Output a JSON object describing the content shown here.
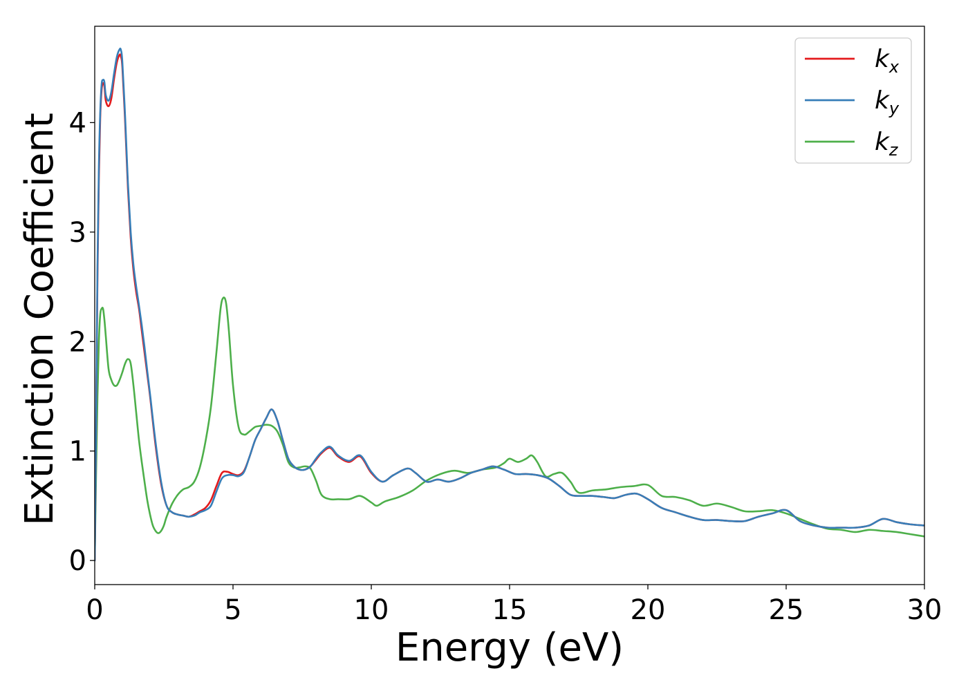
{
  "chart_data": {
    "type": "line",
    "title": "",
    "xlabel": "Energy (eV)",
    "ylabel": "Extinction Coefficient",
    "xlim": [
      0,
      30
    ],
    "ylim": [
      -0.22,
      4.88
    ],
    "xticks": [
      0,
      5,
      10,
      15,
      20,
      25,
      30
    ],
    "yticks": [
      0,
      1,
      2,
      3,
      4
    ],
    "grid": false,
    "legend_position": "top-right",
    "series": [
      {
        "name": "k_x",
        "legend_base": "k",
        "legend_sub": "x",
        "color": "#e41a1c",
        "x": [
          0,
          0.05,
          0.1,
          0.15,
          0.2,
          0.25,
          0.3,
          0.35,
          0.4,
          0.5,
          0.6,
          0.7,
          0.8,
          0.9,
          0.95,
          1.0,
          1.1,
          1.2,
          1.3,
          1.4,
          1.5,
          1.6,
          1.7,
          1.8,
          1.9,
          2.0,
          2.2,
          2.4,
          2.6,
          2.8,
          3.0,
          3.2,
          3.4,
          3.6,
          3.8,
          4.0,
          4.2,
          4.4,
          4.6,
          4.8,
          5.0,
          5.2,
          5.4,
          5.6,
          5.8,
          6.0,
          6.2,
          6.4,
          6.6,
          6.8,
          7.0,
          7.2,
          7.4,
          7.6,
          7.8,
          8.0,
          8.2,
          8.5,
          8.8,
          9.2,
          9.6,
          10.0,
          10.4,
          10.8,
          11.3,
          11.6,
          12.0,
          12.4,
          12.8,
          13.2,
          13.6,
          14.0,
          14.4,
          14.8,
          15.2,
          15.6,
          16.0,
          16.4,
          16.8,
          17.2,
          17.6,
          18.0,
          18.4,
          18.8,
          19.2,
          19.6,
          20.0,
          20.5,
          21.0,
          21.5,
          22.0,
          22.5,
          23.0,
          23.5,
          24.0,
          24.5,
          25.0,
          25.5,
          26.0,
          26.5,
          27.0,
          27.5,
          28.0,
          28.5,
          29.0,
          29.5,
          30.0
        ],
        "y": [
          0.0,
          1.2,
          2.6,
          3.5,
          4.05,
          4.3,
          4.36,
          4.33,
          4.2,
          4.15,
          4.22,
          4.4,
          4.55,
          4.62,
          4.6,
          4.5,
          4.0,
          3.4,
          2.95,
          2.65,
          2.45,
          2.3,
          2.1,
          1.9,
          1.7,
          1.5,
          1.05,
          0.7,
          0.5,
          0.44,
          0.42,
          0.41,
          0.4,
          0.42,
          0.45,
          0.48,
          0.55,
          0.68,
          0.8,
          0.81,
          0.79,
          0.78,
          0.82,
          0.95,
          1.1,
          1.2,
          1.3,
          1.38,
          1.28,
          1.1,
          0.93,
          0.86,
          0.83,
          0.83,
          0.86,
          0.92,
          0.98,
          1.03,
          0.95,
          0.9,
          0.95,
          0.8,
          0.72,
          0.78,
          0.84,
          0.8,
          0.72,
          0.74,
          0.72,
          0.75,
          0.8,
          0.83,
          0.86,
          0.83,
          0.79,
          0.79,
          0.78,
          0.75,
          0.68,
          0.6,
          0.59,
          0.59,
          0.58,
          0.57,
          0.6,
          0.61,
          0.56,
          0.48,
          0.44,
          0.4,
          0.37,
          0.37,
          0.36,
          0.36,
          0.4,
          0.43,
          0.46,
          0.36,
          0.32,
          0.3,
          0.3,
          0.3,
          0.32,
          0.38,
          0.35,
          0.33,
          0.32
        ]
      },
      {
        "name": "k_y",
        "legend_base": "k",
        "legend_sub": "y",
        "color": "#377eb8",
        "x": [
          0,
          0.05,
          0.1,
          0.15,
          0.2,
          0.25,
          0.3,
          0.35,
          0.4,
          0.5,
          0.6,
          0.7,
          0.8,
          0.9,
          0.95,
          1.0,
          1.1,
          1.2,
          1.3,
          1.4,
          1.5,
          1.6,
          1.7,
          1.8,
          1.9,
          2.0,
          2.2,
          2.4,
          2.6,
          2.8,
          3.0,
          3.2,
          3.4,
          3.6,
          3.8,
          4.0,
          4.2,
          4.4,
          4.6,
          4.8,
          5.0,
          5.2,
          5.4,
          5.6,
          5.8,
          6.0,
          6.2,
          6.4,
          6.6,
          6.8,
          7.0,
          7.2,
          7.4,
          7.6,
          7.8,
          8.0,
          8.2,
          8.5,
          8.8,
          9.2,
          9.6,
          10.0,
          10.4,
          10.8,
          11.3,
          11.6,
          12.0,
          12.4,
          12.8,
          13.2,
          13.6,
          14.0,
          14.4,
          14.8,
          15.2,
          15.6,
          16.0,
          16.4,
          16.8,
          17.2,
          17.6,
          18.0,
          18.4,
          18.8,
          19.2,
          19.6,
          20.0,
          20.5,
          21.0,
          21.5,
          22.0,
          22.5,
          23.0,
          23.5,
          24.0,
          24.5,
          25.0,
          25.5,
          26.0,
          26.5,
          27.0,
          27.5,
          28.0,
          28.5,
          29.0,
          29.5,
          30.0
        ],
        "y": [
          0.0,
          1.25,
          2.7,
          3.6,
          4.1,
          4.35,
          4.39,
          4.37,
          4.25,
          4.2,
          4.28,
          4.45,
          4.6,
          4.67,
          4.66,
          4.55,
          4.05,
          3.45,
          3.0,
          2.7,
          2.5,
          2.33,
          2.15,
          1.95,
          1.73,
          1.52,
          1.08,
          0.72,
          0.5,
          0.44,
          0.42,
          0.41,
          0.4,
          0.41,
          0.44,
          0.46,
          0.5,
          0.63,
          0.75,
          0.78,
          0.78,
          0.77,
          0.81,
          0.95,
          1.1,
          1.2,
          1.3,
          1.38,
          1.28,
          1.1,
          0.93,
          0.86,
          0.83,
          0.83,
          0.86,
          0.93,
          0.99,
          1.04,
          0.96,
          0.91,
          0.96,
          0.81,
          0.72,
          0.78,
          0.84,
          0.8,
          0.72,
          0.74,
          0.72,
          0.75,
          0.8,
          0.83,
          0.86,
          0.83,
          0.79,
          0.79,
          0.78,
          0.75,
          0.68,
          0.6,
          0.59,
          0.59,
          0.58,
          0.57,
          0.6,
          0.61,
          0.56,
          0.48,
          0.44,
          0.4,
          0.37,
          0.37,
          0.36,
          0.36,
          0.4,
          0.43,
          0.46,
          0.36,
          0.32,
          0.3,
          0.3,
          0.3,
          0.32,
          0.38,
          0.35,
          0.33,
          0.32
        ]
      },
      {
        "name": "k_z",
        "legend_base": "k",
        "legend_sub": "z",
        "color": "#4daf4a",
        "x": [
          0,
          0.05,
          0.1,
          0.15,
          0.2,
          0.25,
          0.3,
          0.35,
          0.4,
          0.5,
          0.6,
          0.7,
          0.8,
          0.9,
          1.0,
          1.1,
          1.2,
          1.3,
          1.4,
          1.5,
          1.6,
          1.7,
          1.8,
          1.9,
          2.0,
          2.1,
          2.2,
          2.3,
          2.4,
          2.5,
          2.6,
          2.8,
          3.0,
          3.2,
          3.4,
          3.6,
          3.8,
          4.0,
          4.2,
          4.4,
          4.55,
          4.65,
          4.75,
          4.85,
          5.0,
          5.2,
          5.4,
          5.6,
          5.8,
          6.0,
          6.2,
          6.4,
          6.6,
          6.8,
          7.0,
          7.2,
          7.4,
          7.6,
          7.8,
          8.0,
          8.2,
          8.5,
          8.8,
          9.2,
          9.6,
          10.0,
          10.2,
          10.5,
          11.0,
          11.5,
          12.0,
          12.5,
          13.0,
          13.5,
          14.0,
          14.5,
          14.8,
          15.0,
          15.3,
          15.6,
          15.8,
          16.0,
          16.3,
          16.6,
          16.9,
          17.2,
          17.5,
          18.0,
          18.5,
          19.0,
          19.5,
          20.0,
          20.5,
          21.0,
          21.5,
          22.0,
          22.5,
          23.0,
          23.5,
          24.0,
          24.5,
          25.0,
          25.5,
          26.0,
          26.5,
          27.0,
          27.5,
          28.0,
          28.5,
          29.0,
          29.5,
          30.0
        ],
        "y": [
          0.0,
          0.8,
          1.5,
          2.0,
          2.25,
          2.3,
          2.3,
          2.2,
          2.05,
          1.75,
          1.65,
          1.6,
          1.6,
          1.65,
          1.72,
          1.8,
          1.84,
          1.8,
          1.6,
          1.35,
          1.1,
          0.9,
          0.72,
          0.55,
          0.42,
          0.32,
          0.27,
          0.25,
          0.27,
          0.32,
          0.4,
          0.52,
          0.6,
          0.65,
          0.67,
          0.72,
          0.85,
          1.08,
          1.4,
          1.9,
          2.3,
          2.4,
          2.35,
          2.1,
          1.6,
          1.22,
          1.15,
          1.18,
          1.22,
          1.23,
          1.24,
          1.23,
          1.18,
          1.06,
          0.9,
          0.85,
          0.85,
          0.86,
          0.84,
          0.73,
          0.6,
          0.56,
          0.56,
          0.56,
          0.59,
          0.53,
          0.5,
          0.54,
          0.58,
          0.64,
          0.73,
          0.79,
          0.82,
          0.8,
          0.83,
          0.85,
          0.89,
          0.93,
          0.9,
          0.93,
          0.96,
          0.9,
          0.77,
          0.79,
          0.8,
          0.72,
          0.62,
          0.64,
          0.65,
          0.67,
          0.68,
          0.69,
          0.59,
          0.58,
          0.55,
          0.5,
          0.52,
          0.49,
          0.45,
          0.45,
          0.46,
          0.43,
          0.38,
          0.33,
          0.29,
          0.28,
          0.26,
          0.28,
          0.27,
          0.26,
          0.24,
          0.22
        ]
      }
    ]
  }
}
